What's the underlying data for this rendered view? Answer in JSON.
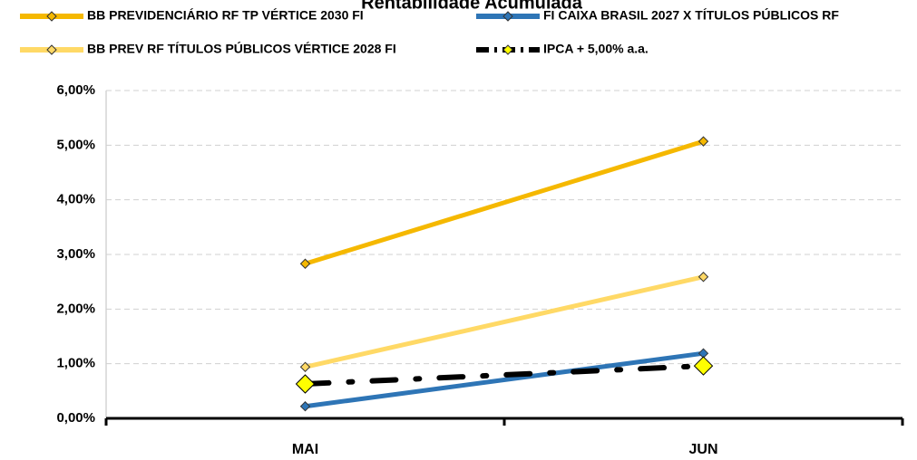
{
  "chart_data": {
    "type": "line",
    "title": "Rentabilidade Acumulada",
    "categories": [
      "MAI",
      "JUN"
    ],
    "series": [
      {
        "name": "BB PREVIDENCIÁRIO RF TP VÉRTICE 2030 FI",
        "color": "#F5B800",
        "values": [
          2.83,
          5.07
        ]
      },
      {
        "name": "FI CAIXA BRASIL 2027 X TÍTULOS PÚBLICOS RF",
        "color": "#2E75B6",
        "values": [
          0.22,
          1.19
        ]
      },
      {
        "name": "BB PREV RF TÍTULOS PÚBLICOS VÉRTICE 2028 FI",
        "color": "#FFD966",
        "values": [
          0.94,
          2.59
        ]
      },
      {
        "name": "IPCA + 5,00% a.a.",
        "color": "#000000",
        "marker_color": "#FFFF00",
        "dash": "dashdot",
        "values": [
          0.63,
          0.96
        ]
      }
    ],
    "ylim": [
      0,
      6
    ],
    "yticks": [
      {
        "value": 0,
        "label": "0,00%"
      },
      {
        "value": 1,
        "label": "1,00%"
      },
      {
        "value": 2,
        "label": "2,00%"
      },
      {
        "value": 3,
        "label": "3,00%"
      },
      {
        "value": 4,
        "label": "4,00%"
      },
      {
        "value": 5,
        "label": "5,00%"
      },
      {
        "value": 6,
        "label": "6,00%"
      }
    ],
    "grid": true,
    "legend": "top"
  }
}
